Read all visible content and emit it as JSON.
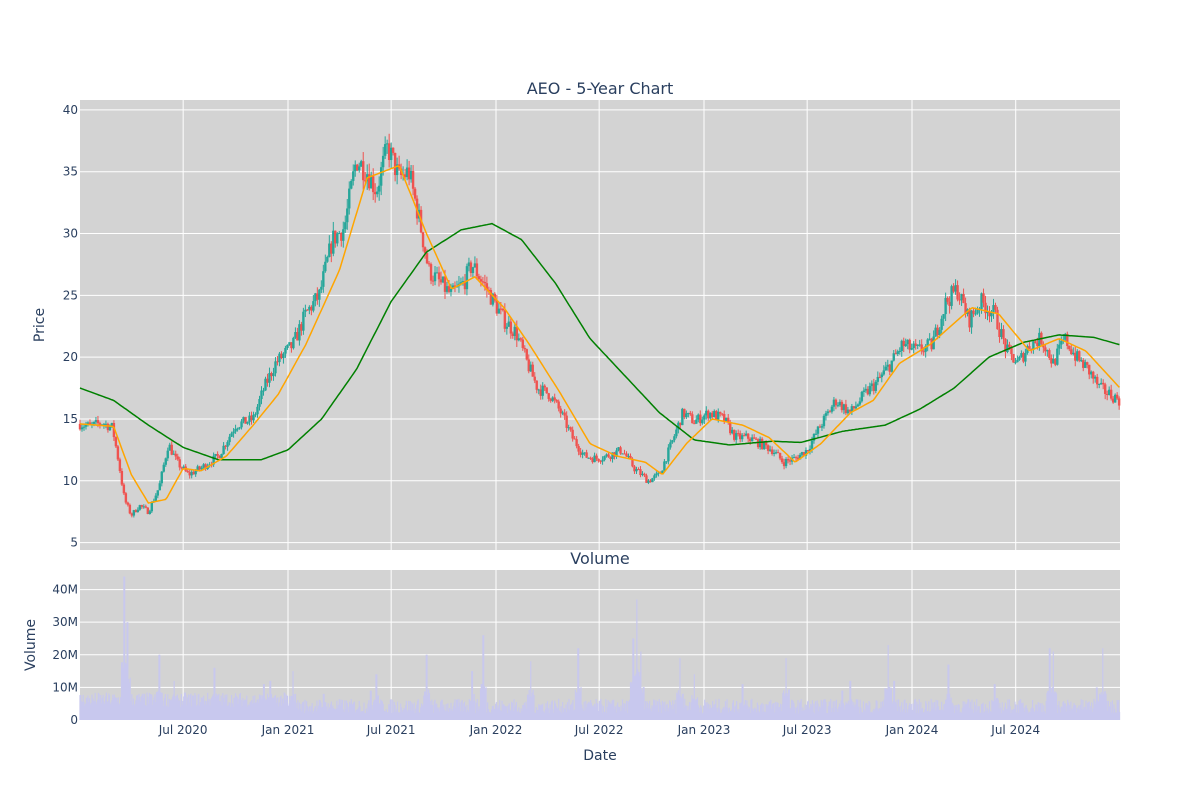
{
  "chart_data": [
    {
      "type": "candlestick",
      "title": "AEO - 5-Year Chart",
      "ylabel": "Price",
      "ylim": [
        4.4,
        40.8
      ],
      "yticks": [
        5,
        10,
        15,
        20,
        25,
        30,
        35,
        40
      ],
      "grid": true,
      "colors": {
        "up": "#26a69a",
        "down": "#ef5350",
        "ma50": "#ffa500",
        "ma200": "#008000",
        "plot_bg": "#d3d3d3",
        "grid": "#ffffff"
      },
      "close_approx": [
        [
          "2020-01-02",
          14.6
        ],
        [
          "2020-01-20",
          14.4
        ],
        [
          "2020-02-10",
          14.7
        ],
        [
          "2020-02-28",
          14.3
        ],
        [
          "2020-03-10",
          11.5
        ],
        [
          "2020-03-20",
          8.5
        ],
        [
          "2020-04-01",
          7.2
        ],
        [
          "2020-04-15",
          8.0
        ],
        [
          "2020-05-01",
          7.5
        ],
        [
          "2020-05-20",
          9.5
        ],
        [
          "2020-06-05",
          13.0
        ],
        [
          "2020-06-20",
          11.5
        ],
        [
          "2020-07-10",
          10.5
        ],
        [
          "2020-08-01",
          11.0
        ],
        [
          "2020-09-01",
          12.0
        ],
        [
          "2020-10-01",
          14.5
        ],
        [
          "2020-11-01",
          15.0
        ],
        [
          "2020-11-20",
          17.5
        ],
        [
          "2020-12-10",
          19.5
        ],
        [
          "2021-01-10",
          21.0
        ],
        [
          "2021-02-01",
          23.5
        ],
        [
          "2021-02-25",
          25.0
        ],
        [
          "2021-03-20",
          29.5
        ],
        [
          "2021-04-10",
          30.5
        ],
        [
          "2021-05-01",
          36.0
        ],
        [
          "2021-05-20",
          35.0
        ],
        [
          "2021-06-05",
          33.5
        ],
        [
          "2021-06-25",
          37.0
        ],
        [
          "2021-07-15",
          34.5
        ],
        [
          "2021-08-01",
          35.0
        ],
        [
          "2021-08-20",
          31.0
        ],
        [
          "2021-09-05",
          27.0
        ],
        [
          "2021-09-25",
          26.0
        ],
        [
          "2021-10-15",
          25.0
        ],
        [
          "2021-11-05",
          26.0
        ],
        [
          "2021-11-20",
          27.5
        ],
        [
          "2021-12-10",
          26.0
        ],
        [
          "2021-12-28",
          24.5
        ],
        [
          "2022-01-15",
          23.0
        ],
        [
          "2022-02-05",
          22.0
        ],
        [
          "2022-02-25",
          19.5
        ],
        [
          "2022-03-15",
          17.5
        ],
        [
          "2022-04-05",
          17.0
        ],
        [
          "2022-04-25",
          15.5
        ],
        [
          "2022-05-15",
          13.5
        ],
        [
          "2022-06-05",
          12.0
        ],
        [
          "2022-06-25",
          11.8
        ],
        [
          "2022-07-15",
          12.0
        ],
        [
          "2022-08-10",
          12.5
        ],
        [
          "2022-09-01",
          11.0
        ],
        [
          "2022-09-25",
          10.0
        ],
        [
          "2022-10-15",
          10.5
        ],
        [
          "2022-11-05",
          13.0
        ],
        [
          "2022-11-25",
          15.5
        ],
        [
          "2022-12-15",
          14.8
        ],
        [
          "2023-01-10",
          15.5
        ],
        [
          "2023-02-05",
          15.0
        ],
        [
          "2023-02-25",
          13.5
        ],
        [
          "2023-03-20",
          13.5
        ],
        [
          "2023-04-10",
          13.0
        ],
        [
          "2023-05-01",
          12.5
        ],
        [
          "2023-05-20",
          11.5
        ],
        [
          "2023-06-10",
          11.8
        ],
        [
          "2023-07-01",
          12.5
        ],
        [
          "2023-07-25",
          14.5
        ],
        [
          "2023-08-20",
          16.5
        ],
        [
          "2023-09-15",
          15.5
        ],
        [
          "2023-10-10",
          17.0
        ],
        [
          "2023-11-01",
          18.0
        ],
        [
          "2023-11-25",
          19.5
        ],
        [
          "2023-12-15",
          21.0
        ],
        [
          "2024-01-10",
          20.5
        ],
        [
          "2024-02-05",
          21.0
        ],
        [
          "2024-03-01",
          24.5
        ],
        [
          "2024-03-20",
          25.5
        ],
        [
          "2024-04-10",
          23.0
        ],
        [
          "2024-05-01",
          24.5
        ],
        [
          "2024-05-25",
          23.5
        ],
        [
          "2024-06-15",
          20.5
        ],
        [
          "2024-07-05",
          19.5
        ],
        [
          "2024-07-25",
          21.0
        ],
        [
          "2024-08-15",
          21.5
        ],
        [
          "2024-09-05",
          19.5
        ],
        [
          "2024-09-25",
          21.5
        ],
        [
          "2024-10-15",
          20.0
        ],
        [
          "2024-11-05",
          19.0
        ],
        [
          "2024-11-25",
          17.5
        ],
        [
          "2024-12-31",
          16.5
        ]
      ],
      "ma50_approx": [
        [
          "2020-01-02",
          14.6
        ],
        [
          "2020-03-01",
          14.4
        ],
        [
          "2020-04-01",
          10.5
        ],
        [
          "2020-05-01",
          8.2
        ],
        [
          "2020-06-01",
          8.5
        ],
        [
          "2020-07-01",
          11.0
        ],
        [
          "2020-08-01",
          10.8
        ],
        [
          "2020-09-15",
          12.0
        ],
        [
          "2020-11-01",
          14.5
        ],
        [
          "2020-12-15",
          17.0
        ],
        [
          "2021-02-01",
          21.0
        ],
        [
          "2021-04-01",
          27.0
        ],
        [
          "2021-05-20",
          34.5
        ],
        [
          "2021-07-15",
          35.5
        ],
        [
          "2021-09-01",
          30.0
        ],
        [
          "2021-10-15",
          25.5
        ],
        [
          "2021-11-25",
          26.5
        ],
        [
          "2022-01-15",
          24.0
        ],
        [
          "2022-03-01",
          21.0
        ],
        [
          "2022-04-25",
          17.0
        ],
        [
          "2022-06-15",
          13.0
        ],
        [
          "2022-08-01",
          12.0
        ],
        [
          "2022-09-20",
          11.5
        ],
        [
          "2022-10-20",
          10.5
        ],
        [
          "2022-12-01",
          13.0
        ],
        [
          "2023-01-15",
          15.0
        ],
        [
          "2023-03-10",
          14.5
        ],
        [
          "2023-04-25",
          13.5
        ],
        [
          "2023-06-10",
          11.5
        ],
        [
          "2023-07-25",
          13.0
        ],
        [
          "2023-09-15",
          15.5
        ],
        [
          "2023-10-25",
          16.5
        ],
        [
          "2023-12-10",
          19.5
        ],
        [
          "2024-02-01",
          21.0
        ],
        [
          "2024-04-15",
          24.0
        ],
        [
          "2024-06-01",
          23.5
        ],
        [
          "2024-07-25",
          20.5
        ],
        [
          "2024-09-15",
          21.5
        ],
        [
          "2024-11-01",
          20.5
        ],
        [
          "2024-12-31",
          17.5
        ]
      ],
      "ma200_approx": [
        [
          "2020-01-02",
          17.5
        ],
        [
          "2020-03-01",
          16.5
        ],
        [
          "2020-05-01",
          14.5
        ],
        [
          "2020-07-01",
          12.7
        ],
        [
          "2020-09-01",
          11.7
        ],
        [
          "2020-11-15",
          11.7
        ],
        [
          "2021-01-01",
          12.5
        ],
        [
          "2021-03-01",
          15.0
        ],
        [
          "2021-05-01",
          19.0
        ],
        [
          "2021-07-01",
          24.5
        ],
        [
          "2021-09-01",
          28.5
        ],
        [
          "2021-11-01",
          30.3
        ],
        [
          "2021-12-25",
          30.8
        ],
        [
          "2022-02-15",
          29.5
        ],
        [
          "2022-04-15",
          26.0
        ],
        [
          "2022-06-15",
          21.5
        ],
        [
          "2022-08-15",
          18.5
        ],
        [
          "2022-10-15",
          15.5
        ],
        [
          "2022-12-15",
          13.3
        ],
        [
          "2023-02-15",
          12.9
        ],
        [
          "2023-05-01",
          13.2
        ],
        [
          "2023-06-20",
          13.1
        ],
        [
          "2023-09-01",
          14.0
        ],
        [
          "2023-11-15",
          14.5
        ],
        [
          "2024-01-15",
          15.8
        ],
        [
          "2024-03-15",
          17.5
        ],
        [
          "2024-05-15",
          20.0
        ],
        [
          "2024-07-15",
          21.2
        ],
        [
          "2024-09-15",
          21.8
        ],
        [
          "2024-11-15",
          21.6
        ],
        [
          "2024-12-31",
          21.0
        ]
      ]
    },
    {
      "type": "bar",
      "title": "Volume",
      "xlabel": "Date",
      "ylabel": "Volume",
      "ylim": [
        0,
        46
      ],
      "yticks": [
        {
          "value": 0,
          "label": "0"
        },
        {
          "value": 10,
          "label": "10M"
        },
        {
          "value": 20,
          "label": "20M"
        },
        {
          "value": 30,
          "label": "30M"
        },
        {
          "value": 40,
          "label": "40M"
        }
      ],
      "xticks": [
        {
          "date": "2020-07-01",
          "label": "Jul 2020"
        },
        {
          "date": "2021-01-01",
          "label": "Jan 2021"
        },
        {
          "date": "2021-07-01",
          "label": "Jul 2021"
        },
        {
          "date": "2022-01-01",
          "label": "Jan 2022"
        },
        {
          "date": "2022-07-01",
          "label": "Jul 2022"
        },
        {
          "date": "2023-01-01",
          "label": "Jan 2023"
        },
        {
          "date": "2023-07-01",
          "label": "Jul 2023"
        },
        {
          "date": "2024-01-01",
          "label": "Jan 2024"
        },
        {
          "date": "2024-07-01",
          "label": "Jul 2024"
        }
      ],
      "xrange": [
        "2020-01-02",
        "2024-12-31"
      ],
      "color": "#c8c8ee",
      "volume_spikes_millions": [
        [
          "2020-03-20",
          44
        ],
        [
          "2020-03-25",
          30
        ],
        [
          "2020-05-20",
          20
        ],
        [
          "2020-06-15",
          12
        ],
        [
          "2020-08-25",
          16
        ],
        [
          "2020-11-20",
          11
        ],
        [
          "2020-12-01",
          12
        ],
        [
          "2021-01-10",
          15
        ],
        [
          "2021-03-05",
          8
        ],
        [
          "2021-05-26",
          9
        ],
        [
          "2021-06-05",
          14
        ],
        [
          "2021-09-01",
          20
        ],
        [
          "2021-11-20",
          15
        ],
        [
          "2021-12-10",
          26
        ],
        [
          "2022-03-03",
          18
        ],
        [
          "2022-05-25",
          22
        ],
        [
          "2022-08-30",
          25
        ],
        [
          "2022-09-05",
          37
        ],
        [
          "2022-09-12",
          21
        ],
        [
          "2022-11-20",
          19
        ],
        [
          "2022-12-15",
          14
        ],
        [
          "2023-03-10",
          11
        ],
        [
          "2023-05-25",
          19
        ],
        [
          "2023-09-01",
          9
        ],
        [
          "2023-09-15",
          12
        ],
        [
          "2023-11-20",
          23
        ],
        [
          "2023-12-01",
          12
        ],
        [
          "2024-03-05",
          17
        ],
        [
          "2024-05-25",
          11
        ],
        [
          "2024-08-30",
          22
        ],
        [
          "2024-09-05",
          21
        ],
        [
          "2024-11-20",
          10
        ],
        [
          "2024-12-01",
          22
        ]
      ]
    }
  ]
}
